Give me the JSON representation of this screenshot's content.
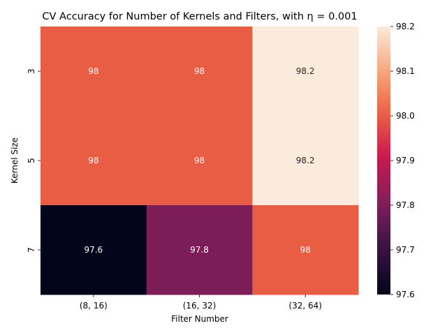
{
  "chart_data": {
    "type": "heatmap",
    "title": "CV Accuracy for Number of Kernels and Filters, with η = 0.001",
    "xlabel": "Filter Number",
    "ylabel": "Kernel Size",
    "x_categories": [
      "(8, 16)",
      "(16, 32)",
      "(32, 64)"
    ],
    "y_categories": [
      "3",
      "5",
      "7"
    ],
    "values": [
      [
        98.0,
        98.0,
        98.2
      ],
      [
        98.0,
        98.0,
        98.2
      ],
      [
        97.6,
        97.8,
        98.0
      ]
    ],
    "cell_labels": [
      [
        "98",
        "98",
        "98.2"
      ],
      [
        "98",
        "98",
        "98.2"
      ],
      [
        "97.6",
        "97.8",
        "98"
      ]
    ],
    "colorbar": {
      "range": [
        97.6,
        98.2
      ],
      "ticks": [
        "97.6",
        "97.7",
        "97.8",
        "97.9",
        "98.0",
        "98.1",
        "98.2"
      ],
      "colormap": "rocket"
    },
    "colors": {
      "v97.6": "#03051a",
      "v97.8": "#841e5a",
      "v98.0": "#ea5e45",
      "v98.2": "#faebdd"
    }
  }
}
